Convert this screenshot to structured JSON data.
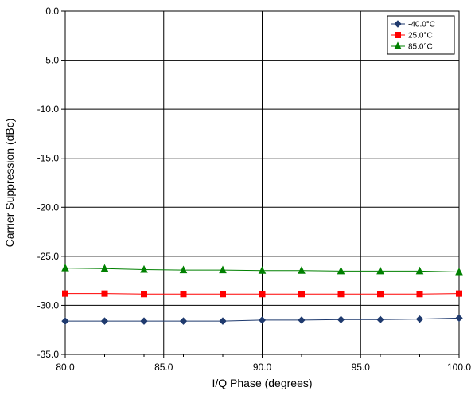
{
  "chart_data": {
    "type": "line",
    "title": "",
    "xlabel": "I/Q Phase (degrees)",
    "ylabel": "Carrier Suppression (dBc)",
    "xlim": [
      80,
      100
    ],
    "ylim": [
      -35,
      0
    ],
    "x_ticks": [
      "80.0",
      "85.0",
      "90.0",
      "95.0",
      "100.0"
    ],
    "y_ticks": [
      "0.0",
      "-5.0",
      "-10.0",
      "-15.0",
      "-20.0",
      "-25.0",
      "-30.0",
      "-35.0"
    ],
    "grid": "major",
    "legend_position": "top-right",
    "x": [
      80,
      82,
      84,
      86,
      88,
      90,
      92,
      94,
      96,
      98,
      100
    ],
    "series": [
      {
        "name": "-40.0°C",
        "color": "#1f3a6e",
        "marker": "diamond",
        "values": [
          -31.6,
          -31.6,
          -31.6,
          -31.6,
          -31.6,
          -31.5,
          -31.5,
          -31.45,
          -31.45,
          -31.4,
          -31.3
        ]
      },
      {
        "name": "25.0°C",
        "color": "#ff0000",
        "marker": "square",
        "values": [
          -28.8,
          -28.8,
          -28.85,
          -28.85,
          -28.85,
          -28.85,
          -28.85,
          -28.85,
          -28.85,
          -28.85,
          -28.8
        ]
      },
      {
        "name": "85.0°C",
        "color": "#008000",
        "marker": "triangle",
        "values": [
          -26.2,
          -26.25,
          -26.35,
          -26.4,
          -26.4,
          -26.45,
          -26.45,
          -26.5,
          -26.5,
          -26.5,
          -26.6
        ]
      }
    ]
  }
}
